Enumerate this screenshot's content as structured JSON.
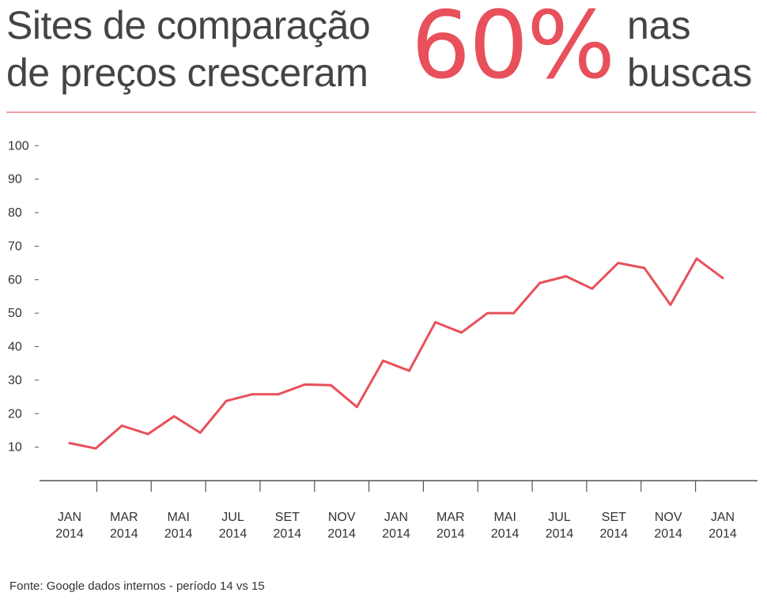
{
  "headline": {
    "line1": "Sites de comparação",
    "line2": "de preços cresceram",
    "percent": "60%",
    "right_line1": "nas",
    "right_line2": "buscas"
  },
  "colors": {
    "accent": "#e8505b",
    "rule": "#f0a0a5",
    "text": "#444444",
    "axis": "#555555"
  },
  "chart_data": {
    "type": "line",
    "title": "",
    "xlabel": "",
    "ylabel": "",
    "ylim": [
      0,
      100
    ],
    "yticks": [
      "10",
      "20",
      "30",
      "40",
      "50",
      "60",
      "70",
      "80",
      "90",
      "100"
    ],
    "xtick_labels": [
      [
        "JAN",
        "2014"
      ],
      [
        "MAR",
        "2014"
      ],
      [
        "MAI",
        "2014"
      ],
      [
        "JUL",
        "2014"
      ],
      [
        "SET",
        "2014"
      ],
      [
        "NOV",
        "2014"
      ],
      [
        "JAN",
        "2014"
      ],
      [
        "MAR",
        "2014"
      ],
      [
        "MAI",
        "2014"
      ],
      [
        "JUL",
        "2014"
      ],
      [
        "SET",
        "2014"
      ],
      [
        "NOV",
        "2014"
      ],
      [
        "JAN",
        "2014"
      ]
    ],
    "series": [
      {
        "name": "buscas",
        "values": [
          11.2,
          9.6,
          16.4,
          13.9,
          19.2,
          14.3,
          23.8,
          25.8,
          25.8,
          28.7,
          28.5,
          22.0,
          35.8,
          32.8,
          47.3,
          44.2,
          50.0,
          50.0,
          59.0,
          61.0,
          57.3,
          65.0,
          63.5,
          52.5,
          66.3,
          60.5
        ]
      }
    ]
  },
  "source": "Fonte: Google dados internos - período 14 vs 15"
}
